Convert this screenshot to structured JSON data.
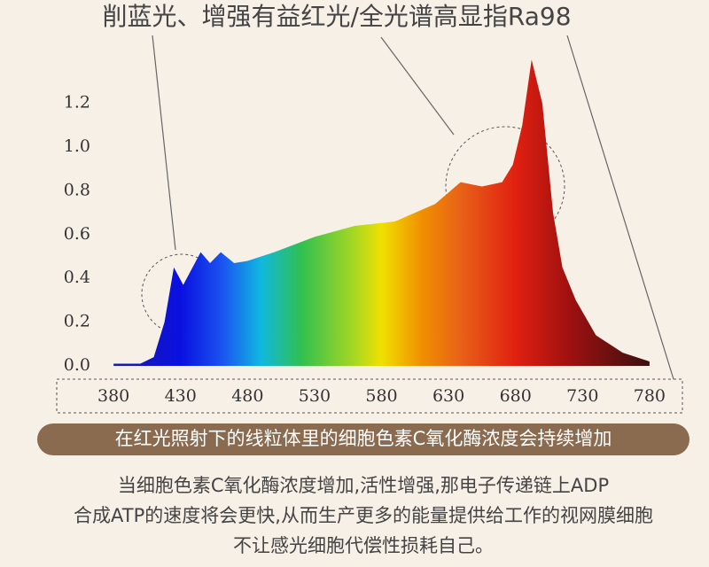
{
  "chart_data": {
    "type": "area",
    "title": "削蓝光、增强有益红光/全光谱高显指Ra98",
    "x": [
      380,
      400,
      410,
      418,
      425,
      432,
      445,
      452,
      460,
      470,
      480,
      500,
      530,
      560,
      590,
      620,
      639,
      655,
      670,
      678,
      685,
      692,
      700,
      708,
      715,
      725,
      740,
      760,
      780
    ],
    "y": [
      0.01,
      0.01,
      0.04,
      0.2,
      0.45,
      0.37,
      0.52,
      0.47,
      0.52,
      0.47,
      0.48,
      0.52,
      0.59,
      0.64,
      0.66,
      0.74,
      0.84,
      0.82,
      0.84,
      0.92,
      1.1,
      1.4,
      1.2,
      0.7,
      0.45,
      0.3,
      0.14,
      0.06,
      0.02
    ],
    "xlim": [
      368,
      790
    ],
    "xticks": [
      380,
      430,
      480,
      530,
      580,
      630,
      680,
      730,
      780
    ],
    "ylim": [
      0,
      1.45
    ],
    "yticks": [
      {
        "value": 0,
        "label": "0.0"
      },
      0.2,
      0.4,
      0.6,
      0.8,
      {
        "value": 1,
        "label": "1.0"
      },
      1.2
    ]
  },
  "banner": "在红光照射下的线粒体里的细胞色素C氧化酶浓度会持续增加",
  "body": [
    "当细胞色素C氧化酶浓度增加,活性增强,那电子传递链上ADP",
    "合成ATP的速度将会更快,从而生产更多的能量提供给工作的视网膜细胞",
    "不让感光细胞代偿性损耗自己。"
  ]
}
